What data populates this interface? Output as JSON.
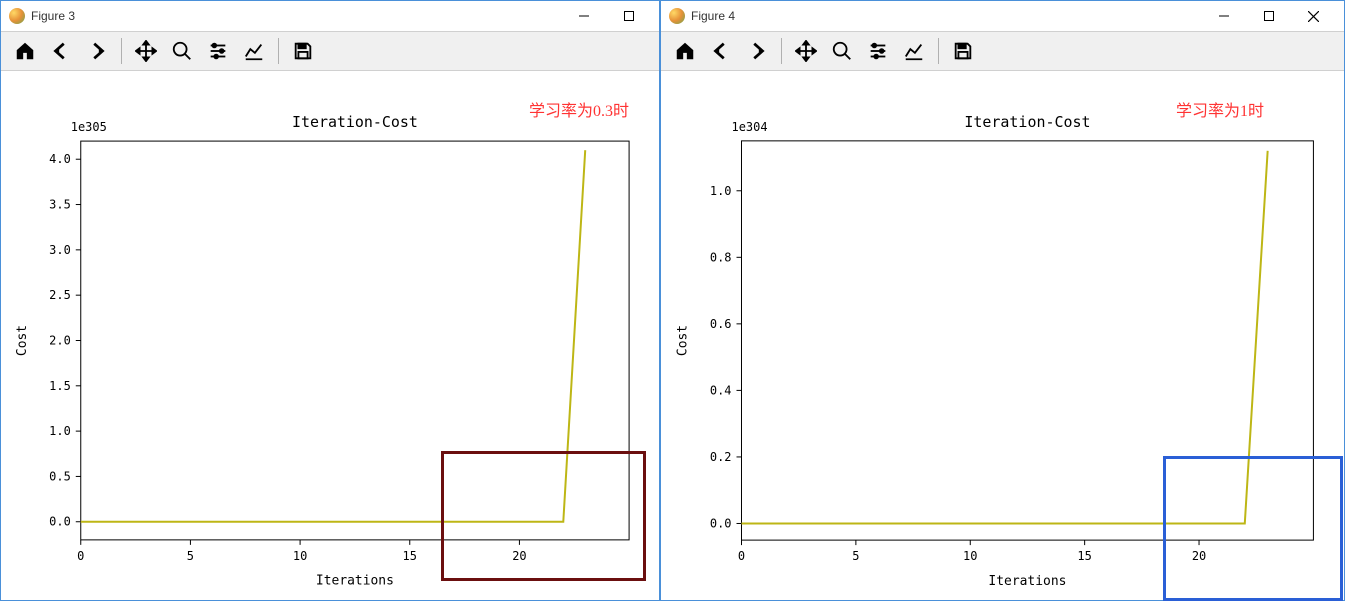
{
  "left_window": {
    "title": "Figure 3",
    "annotation": {
      "text": "学习率为0.3时",
      "color": "#ff3333"
    },
    "chart": {
      "type": "line",
      "title": "Iteration-Cost",
      "title_fontsize": 15,
      "exponent_label": "1e305",
      "xlabel": "Iterations",
      "ylabel": "Cost",
      "label_fontsize": 13,
      "tick_fontsize": 12,
      "xlim": [
        0,
        25
      ],
      "ylim": [
        -0.2,
        4.2
      ],
      "xticks": [
        0,
        5,
        10,
        15,
        20
      ],
      "yticks": [
        0.0,
        0.5,
        1.0,
        1.5,
        2.0,
        2.5,
        3.0,
        3.5,
        4.0
      ],
      "line_color": "#bdb615",
      "line_width": 2,
      "background_color": "#ffffff",
      "axis_color": "#000000",
      "series": {
        "x": [
          0,
          1,
          2,
          3,
          4,
          5,
          6,
          7,
          8,
          9,
          10,
          11,
          12,
          13,
          14,
          15,
          16,
          17,
          18,
          19,
          20,
          21,
          22,
          23
        ],
        "y": [
          0,
          0,
          0,
          0,
          0,
          0,
          0,
          0,
          0,
          0,
          0,
          0,
          0,
          0,
          0,
          0,
          0,
          0,
          0,
          0,
          0,
          0,
          0,
          4.1
        ]
      }
    },
    "highlight": {
      "color": "#6b0f0f",
      "stroke_width": 3
    }
  },
  "right_window": {
    "title": "Figure 4",
    "annotation": {
      "text": "学习率为1时",
      "color": "#ff3333"
    },
    "chart": {
      "type": "line",
      "title": "Iteration-Cost",
      "title_fontsize": 15,
      "exponent_label": "1e304",
      "xlabel": "Iterations",
      "ylabel": "Cost",
      "label_fontsize": 13,
      "tick_fontsize": 12,
      "xlim": [
        0,
        25
      ],
      "ylim": [
        -0.05,
        1.15
      ],
      "xticks": [
        0,
        5,
        10,
        15,
        20
      ],
      "yticks": [
        0.0,
        0.2,
        0.4,
        0.6,
        0.8,
        1.0
      ],
      "line_color": "#bdb615",
      "line_width": 2,
      "background_color": "#ffffff",
      "axis_color": "#000000",
      "series": {
        "x": [
          0,
          1,
          2,
          3,
          4,
          5,
          6,
          7,
          8,
          9,
          10,
          11,
          12,
          13,
          14,
          15,
          16,
          17,
          18,
          19,
          20,
          21,
          22,
          23
        ],
        "y": [
          0,
          0,
          0,
          0,
          0,
          0,
          0,
          0,
          0,
          0,
          0,
          0,
          0,
          0,
          0,
          0,
          0,
          0,
          0,
          0,
          0,
          0,
          0,
          1.12
        ]
      }
    },
    "highlight": {
      "color": "#2a5fd6",
      "stroke_width": 3
    }
  }
}
